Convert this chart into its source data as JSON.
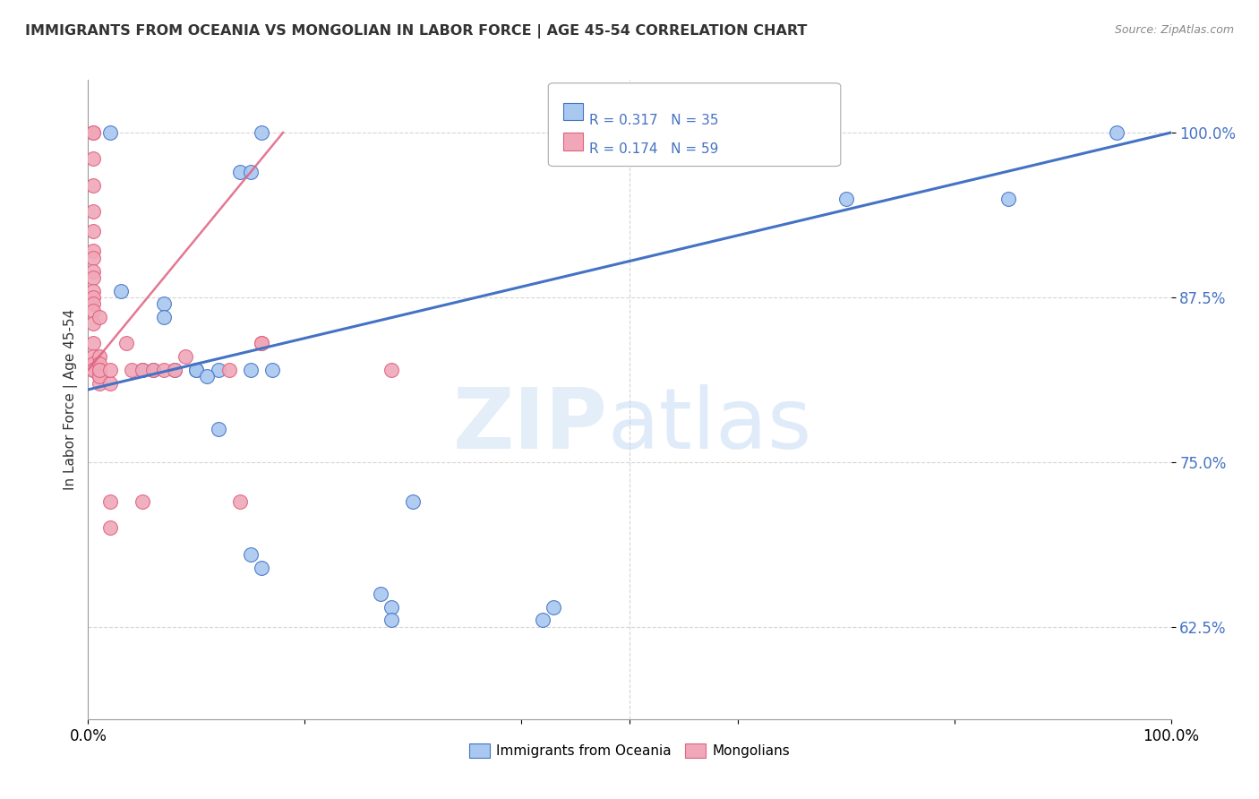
{
  "title": "IMMIGRANTS FROM OCEANIA VS MONGOLIAN IN LABOR FORCE | AGE 45-54 CORRELATION CHART",
  "source": "Source: ZipAtlas.com",
  "ylabel": "In Labor Force | Age 45-54",
  "xlim": [
    0.0,
    1.0
  ],
  "ylim": [
    0.555,
    1.04
  ],
  "ytick_positions": [
    0.625,
    0.75,
    0.875,
    1.0
  ],
  "ytick_labels": [
    "62.5%",
    "75.0%",
    "87.5%",
    "100.0%"
  ],
  "legend_label1": "Immigrants from Oceania",
  "legend_label2": "Mongolians",
  "r1": 0.317,
  "n1": 35,
  "r2": 0.174,
  "n2": 59,
  "color_blue": "#a8c8f0",
  "color_pink": "#f0a8b8",
  "color_blue_line": "#4472c4",
  "color_pink_line": "#e06080",
  "color_blue_text": "#4472c4",
  "blue_line_x0": 0.0,
  "blue_line_y0": 0.805,
  "blue_line_x1": 1.0,
  "blue_line_y1": 1.0,
  "pink_line_x0": 0.0,
  "pink_line_y0": 0.82,
  "pink_line_x1": 0.18,
  "pink_line_y1": 1.0,
  "blue_scatter_x": [
    0.02,
    0.14,
    0.15,
    0.16,
    0.03,
    0.07,
    0.07,
    0.1,
    0.12,
    0.06,
    0.08,
    0.1,
    0.11,
    0.12,
    0.15,
    0.17,
    0.05,
    0.15,
    0.16,
    0.27,
    0.28,
    0.28,
    0.43,
    0.42,
    0.3,
    0.7,
    0.85,
    0.95
  ],
  "blue_scatter_y": [
    1.0,
    0.97,
    0.97,
    1.0,
    0.88,
    0.87,
    0.86,
    0.82,
    0.82,
    0.82,
    0.82,
    0.82,
    0.815,
    0.775,
    0.82,
    0.82,
    0.82,
    0.68,
    0.67,
    0.65,
    0.64,
    0.63,
    0.64,
    0.63,
    0.72,
    0.95,
    0.95,
    1.0
  ],
  "pink_scatter_x": [
    0.005,
    0.005,
    0.005,
    0.005,
    0.005,
    0.005,
    0.005,
    0.005,
    0.005,
    0.005,
    0.005,
    0.005,
    0.005,
    0.005,
    0.005,
    0.005,
    0.005,
    0.005,
    0.005,
    0.005,
    0.01,
    0.01,
    0.01,
    0.01,
    0.01,
    0.01,
    0.01,
    0.01,
    0.02,
    0.02,
    0.02,
    0.02,
    0.035,
    0.04,
    0.05,
    0.05,
    0.06,
    0.07,
    0.08,
    0.09,
    0.13,
    0.14,
    0.16,
    0.16,
    0.28
  ],
  "pink_scatter_y": [
    1.0,
    1.0,
    0.98,
    0.96,
    0.94,
    0.925,
    0.91,
    0.905,
    0.895,
    0.89,
    0.88,
    0.875,
    0.87,
    0.865,
    0.855,
    0.84,
    0.83,
    0.825,
    0.82,
    0.82,
    0.86,
    0.83,
    0.825,
    0.815,
    0.81,
    0.82,
    0.815,
    0.82,
    0.81,
    0.82,
    0.72,
    0.7,
    0.84,
    0.82,
    0.72,
    0.82,
    0.82,
    0.82,
    0.82,
    0.83,
    0.82,
    0.72,
    0.84,
    0.84,
    0.82
  ]
}
